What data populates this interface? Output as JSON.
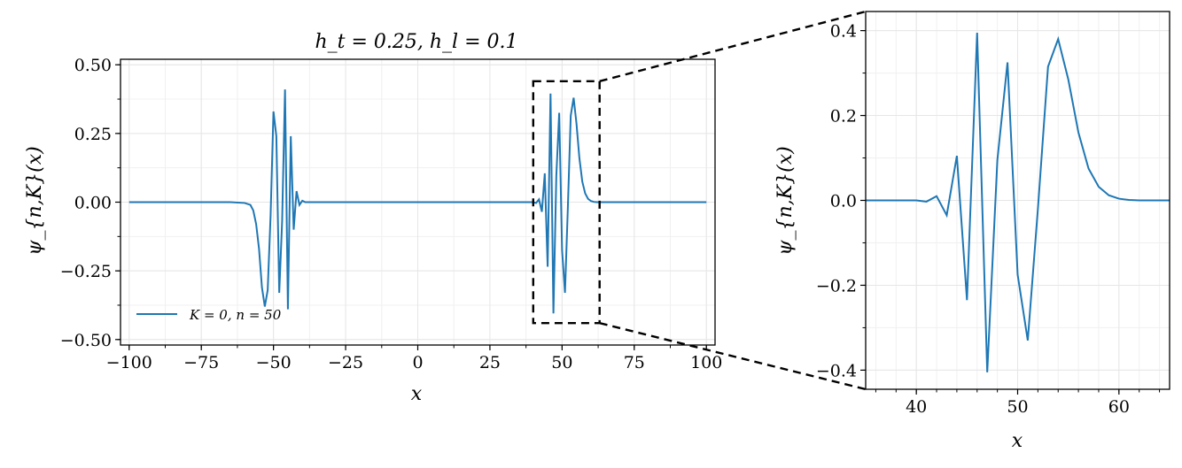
{
  "chart_data": [
    {
      "type": "line",
      "title": "h_t = 0.25, h_l = 0.1",
      "xlabel": "x",
      "ylabel": "ψ_{n,K}(x)",
      "xlim": [
        -103,
        103
      ],
      "ylim": [
        -0.52,
        0.52
      ],
      "xticks": [
        -100,
        -75,
        -50,
        -25,
        0,
        25,
        50,
        75,
        100
      ],
      "xtick_labels": [
        "−100",
        "−75",
        "−50",
        "−25",
        "0",
        "25",
        "50",
        "75",
        "100"
      ],
      "yticks": [
        -0.5,
        -0.25,
        0.0,
        0.25,
        0.5
      ],
      "ytick_labels": [
        "−0.50",
        "−0.25",
        "0.00",
        "0.25",
        "0.50"
      ],
      "grid": true,
      "legend": {
        "position": "bottom-left",
        "entries": [
          "K = 0, n = 50"
        ]
      },
      "zoom_box": {
        "x": [
          40,
          63
        ],
        "y": [
          -0.44,
          0.44
        ]
      },
      "series": [
        {
          "name": "K = 0, n = 50",
          "color": "#1f77b4",
          "points": [
            [
              -100,
              0
            ],
            [
              -80,
              0
            ],
            [
              -65,
              0
            ],
            [
              -60,
              -0.003
            ],
            [
              -58,
              -0.01
            ],
            [
              -57,
              -0.03
            ],
            [
              -56,
              -0.08
            ],
            [
              -55,
              -0.17
            ],
            [
              -54,
              -0.31
            ],
            [
              -53,
              -0.38
            ],
            [
              -52,
              -0.32
            ],
            [
              -51,
              -0.05
            ],
            [
              -50,
              0.33
            ],
            [
              -49,
              0.24
            ],
            [
              -48,
              -0.33
            ],
            [
              -47,
              -0.07
            ],
            [
              -46,
              0.41
            ],
            [
              -45,
              -0.39
            ],
            [
              -44,
              0.24
            ],
            [
              -43,
              -0.1
            ],
            [
              -42,
              0.04
            ],
            [
              -41,
              -0.01
            ],
            [
              -40,
              0.005
            ],
            [
              -39,
              0
            ],
            [
              -20,
              0
            ],
            [
              0,
              0
            ],
            [
              20,
              0
            ],
            [
              35,
              0
            ],
            [
              38,
              0
            ],
            [
              40,
              0.0
            ],
            [
              41,
              -0.003
            ],
            [
              42,
              0.01
            ],
            [
              43,
              -0.035
            ],
            [
              44,
              0.105
            ],
            [
              45,
              -0.235
            ],
            [
              46,
              0.395
            ],
            [
              47,
              -0.405
            ],
            [
              48,
              0.095
            ],
            [
              49,
              0.325
            ],
            [
              50,
              -0.175
            ],
            [
              51,
              -0.33
            ],
            [
              52,
              -0.02
            ],
            [
              53,
              0.315
            ],
            [
              54,
              0.38
            ],
            [
              55,
              0.285
            ],
            [
              56,
              0.16
            ],
            [
              57,
              0.075
            ],
            [
              58,
              0.032
            ],
            [
              59,
              0.012
            ],
            [
              60,
              0.004
            ],
            [
              61,
              0.001
            ],
            [
              62,
              0
            ],
            [
              65,
              0
            ],
            [
              80,
              0
            ],
            [
              100,
              0
            ]
          ]
        }
      ]
    },
    {
      "type": "line",
      "title": "",
      "xlabel": "x",
      "ylabel": "ψ_{n,K}(x)",
      "xlim": [
        35,
        65
      ],
      "ylim": [
        -0.445,
        0.445
      ],
      "xticks": [
        40,
        50,
        60
      ],
      "xtick_labels": [
        "40",
        "50",
        "60"
      ],
      "yticks": [
        -0.4,
        -0.2,
        0.0,
        0.2,
        0.4
      ],
      "ytick_labels": [
        "−0.4",
        "−0.2",
        "0.0",
        "0.2",
        "0.4"
      ],
      "grid": true,
      "series": [
        {
          "color": "#1f77b4",
          "points": [
            [
              35,
              0
            ],
            [
              36,
              0
            ],
            [
              37,
              0
            ],
            [
              38,
              0
            ],
            [
              39,
              0
            ],
            [
              40,
              0.0
            ],
            [
              41,
              -0.003
            ],
            [
              42,
              0.01
            ],
            [
              43,
              -0.035
            ],
            [
              44,
              0.105
            ],
            [
              45,
              -0.235
            ],
            [
              46,
              0.395
            ],
            [
              47,
              -0.405
            ],
            [
              48,
              0.095
            ],
            [
              49,
              0.325
            ],
            [
              50,
              -0.175
            ],
            [
              51,
              -0.33
            ],
            [
              52,
              -0.02
            ],
            [
              53,
              0.315
            ],
            [
              54,
              0.38
            ],
            [
              55,
              0.285
            ],
            [
              56,
              0.16
            ],
            [
              57,
              0.075
            ],
            [
              58,
              0.032
            ],
            [
              59,
              0.012
            ],
            [
              60,
              0.004
            ],
            [
              61,
              0.001
            ],
            [
              62,
              0
            ],
            [
              63,
              0
            ],
            [
              64,
              0
            ],
            [
              65,
              0
            ]
          ]
        }
      ]
    }
  ]
}
